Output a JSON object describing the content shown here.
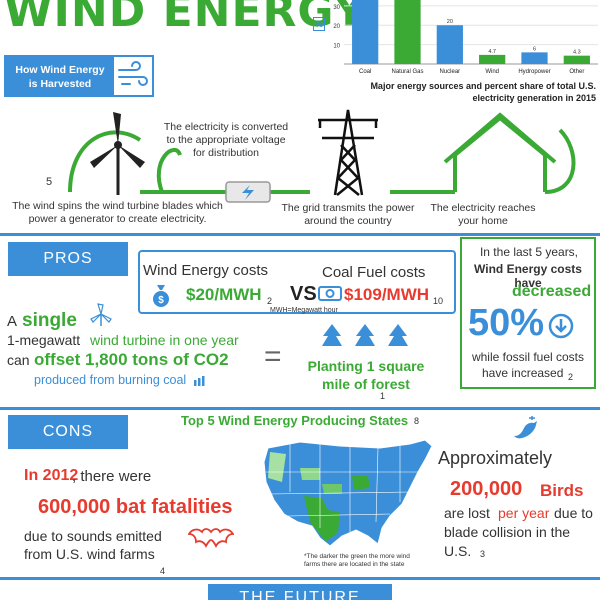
{
  "header": {
    "title": "WIND ENERGY",
    "harvest_label": "How Wind Energy is Harvested"
  },
  "chart_data": {
    "type": "bar",
    "title": "Major energy sources and percent share of total U.S. electricity generation in 2015",
    "ylabel": "%",
    "categories": [
      "Coal",
      "Natural Gas",
      "Nuclear",
      "Wind",
      "Hydropower",
      "Other"
    ],
    "values": [
      33,
      33,
      20,
      4.7,
      6,
      4.3
    ],
    "value_labels": [
      "",
      "",
      "20",
      "4.7",
      "6",
      "4.3"
    ],
    "colors": [
      "#3b8fd9",
      "#3aaa35",
      "#3b8fd9",
      "#3aaa35",
      "#3b8fd9",
      "#3aaa35"
    ],
    "yticks": [
      "30",
      "20",
      "10"
    ],
    "ylim": [
      0,
      33
    ]
  },
  "process": {
    "step_number": "5",
    "step1": "The wind spins the wind turbine blades which power a generator to create electricity.",
    "step2": "The electricity is converted to the appropriate voltage for distribution",
    "step3": "The grid transmits the power around the country",
    "step4": "The electricity reaches your home"
  },
  "pros": {
    "tag": "PROS",
    "wind_cost_label": "Wind Energy costs",
    "wind_cost_value": "$20/MWH",
    "wind_cost_ref": "2",
    "vs": "VS",
    "coal_cost_label": "Coal Fuel costs",
    "coal_cost_value": "$109/MWH",
    "coal_cost_ref": "10",
    "mwh_note": "MWH=Megawatt hour",
    "a": "A",
    "single": "single",
    "turbine_line_prefix": "1-megawatt",
    "turbine_line_green": "wind turbine in one year",
    "can": "can",
    "offset": "offset 1,800 tons of CO2",
    "produced": "produced from burning coal",
    "equals": "=",
    "planting": "Planting 1 square mile of forest",
    "planting_ref": "1",
    "last5": "In the last 5 years,",
    "wind_costs_have": "Wind Energy costs have",
    "decreased": "decreased",
    "fifty": "50%",
    "fossil1": "while fossil fuel costs",
    "fossil2": "have increased",
    "fossil_ref": "2"
  },
  "cons": {
    "tag": "CONS",
    "map_title": "Top 5 Wind Energy Producing States",
    "map_ref": "8",
    "map_note": "*The darker the green the more wind farms there are located in the state",
    "in2012": "In 2012",
    "there_were": ", there were",
    "bats": "600,000 bat fatalities",
    "due1": "due to sounds emitted",
    "due2": "from U.S. wind farms",
    "bats_ref": "4",
    "approx": "Approximately",
    "birds_num": "200,000",
    "birds_word": "Birds",
    "lost_prefix": "are lost",
    "per_year": "per year",
    "lost_suffix": "due to",
    "blade": "blade collision in the",
    "us": "U.S.",
    "birds_ref": "3"
  },
  "future": {
    "title": "THE FUTURE"
  }
}
